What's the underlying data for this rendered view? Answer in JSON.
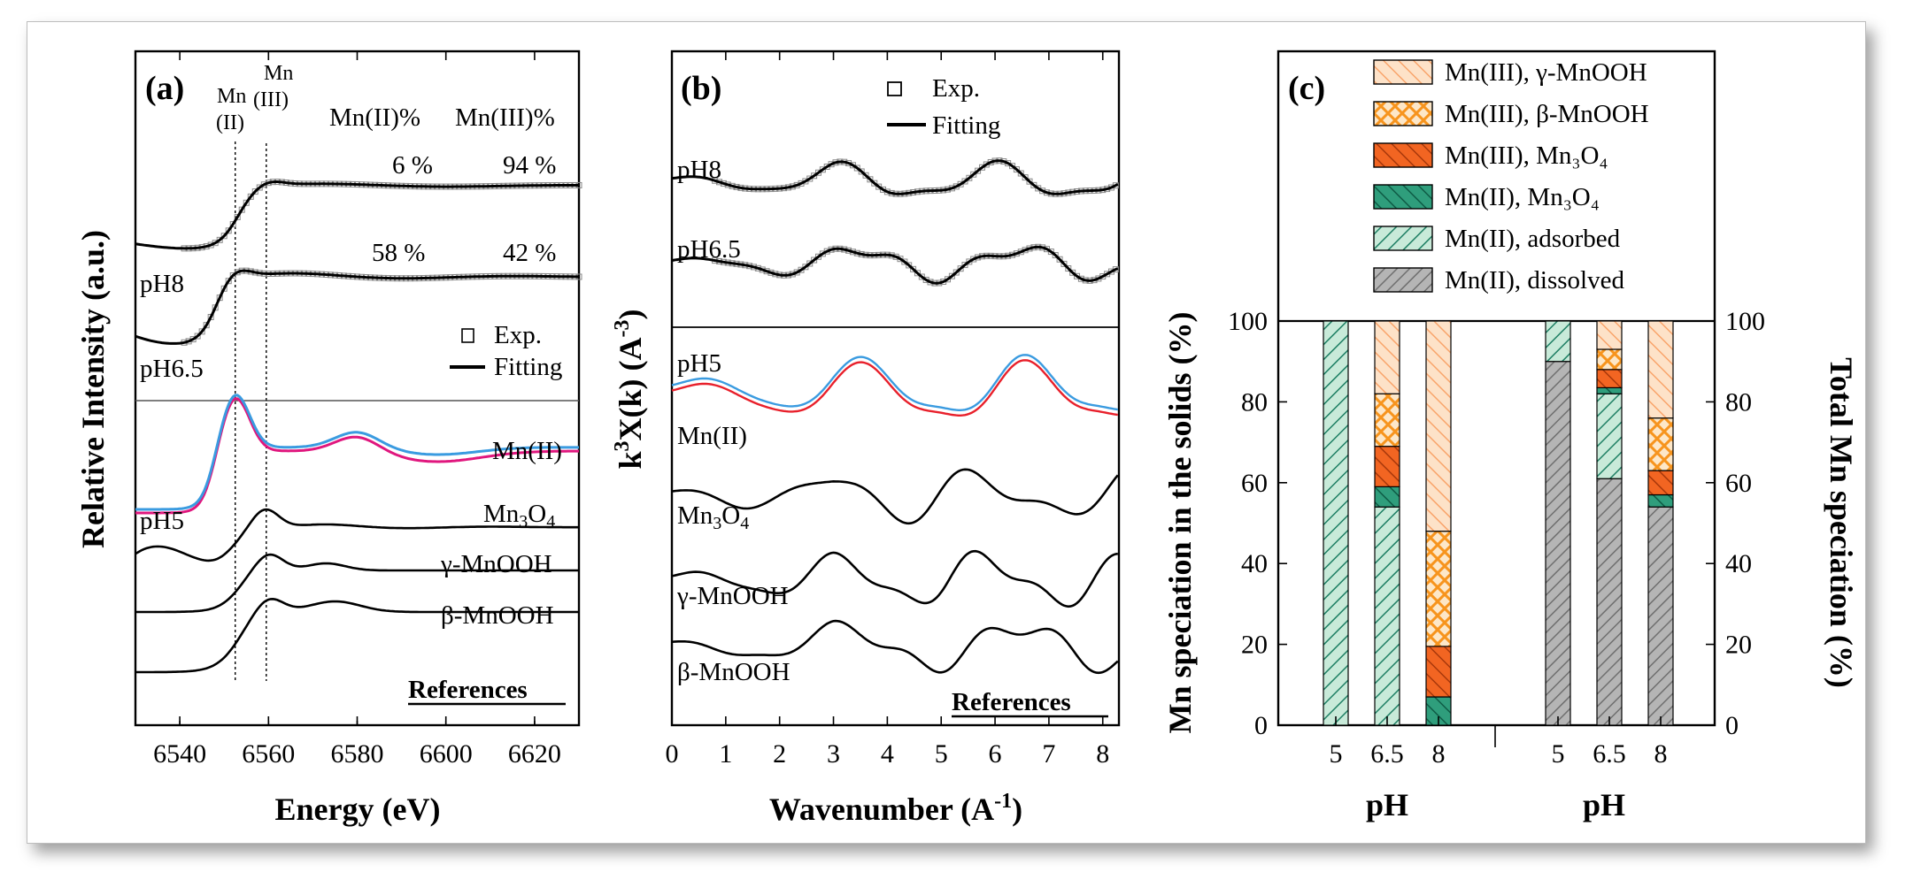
{
  "chart_data": [
    {
      "panel": "(a)",
      "type": "line",
      "xlabel": "Energy (eV)",
      "ylabel": "Relative Intensity (a.u.)",
      "xlim": [
        6530,
        6630
      ],
      "x_ticks": [
        "6540",
        "6560",
        "6580",
        "6600",
        "6620"
      ],
      "edge_labels": {
        "mn2_top": "Mn",
        "mn2_bottom": "(II)",
        "mn3_top": "Mn",
        "mn3_bottom": "(III)"
      },
      "edge_positions_eV": [
        6552.5,
        6559.5
      ],
      "column_headers": [
        "Mn(II)%",
        "Mn(III)%"
      ],
      "fits": [
        {
          "label": "pH8",
          "mn2_pct": "6 %",
          "mn3_pct": "94 %"
        },
        {
          "label": "pH6.5",
          "mn2_pct": "58 %",
          "mn3_pct": "42 %"
        }
      ],
      "pH5_label": "pH5",
      "legend": [
        "Exp.",
        "Fitting"
      ],
      "references_title": "References",
      "references": [
        "Mn(II)",
        "Mn3O4",
        "γ-MnOOH",
        "β-MnOOH"
      ]
    },
    {
      "panel": "(b)",
      "type": "line",
      "xlabel": "Wavenumber (Å-1)",
      "xlabel_main": "Wavenumber (A",
      "xlabel_sup": "-1",
      "xlabel_close": ")",
      "ylabel": "k3X(k) (A-3)",
      "ylabel_k": "k",
      "ylabel_sup1": "3",
      "ylabel_mid": "X(k) (A",
      "ylabel_sup2": "-3",
      "ylabel_close": ")",
      "xlim": [
        0,
        8.3
      ],
      "x_ticks": [
        "0",
        "1",
        "2",
        "3",
        "4",
        "5",
        "6",
        "7",
        "8"
      ],
      "legend": [
        "Exp.",
        "Fitting"
      ],
      "samples": [
        "pH8",
        "pH6.5",
        "pH5"
      ],
      "references_title": "References",
      "references": [
        "Mn(II)",
        "Mn3O4",
        "γ-MnOOH",
        "β-MnOOH"
      ]
    },
    {
      "panel": "(c)",
      "type": "bar",
      "stacked": true,
      "ylabel_left": "Mn speciation in the solids (%)",
      "ylabel_right": "Total Mn speciation (%)",
      "xlabel": "pH",
      "ylim": [
        0,
        100
      ],
      "y_ticks": [
        "0",
        "20",
        "40",
        "60",
        "80",
        "100"
      ],
      "series": [
        {
          "name": "Mn(II), dissolved",
          "color": "#b5b5b5"
        },
        {
          "name": "Mn(II), adsorbed",
          "color": "#c8ead9"
        },
        {
          "name": "Mn(II), Mn₃O₄",
          "color": "#2f9e7c"
        },
        {
          "name": "Mn(III), Mn₃O₄",
          "color": "#f26522"
        },
        {
          "name": "Mn(III), β-MnOOH",
          "color": "#fbbf6b"
        },
        {
          "name": "Mn(III), γ-MnOOH",
          "color": "#fde2c8"
        }
      ],
      "groups": [
        {
          "name": "solids",
          "categories": [
            "5",
            "6.5",
            "8"
          ],
          "values": [
            [
              0,
              100,
              0,
              0,
              0,
              0
            ],
            [
              0,
              54,
              5,
              10,
              13,
              18
            ],
            [
              0,
              0,
              7,
              12.5,
              28.5,
              52
            ]
          ]
        },
        {
          "name": "total",
          "categories": [
            "5",
            "6.5",
            "8"
          ],
          "values": [
            [
              90,
              10,
              0,
              0,
              0,
              0
            ],
            [
              61,
              21,
              1.5,
              4.5,
              5,
              7
            ],
            [
              54,
              0,
              3,
              6,
              13,
              24
            ]
          ]
        }
      ]
    }
  ]
}
